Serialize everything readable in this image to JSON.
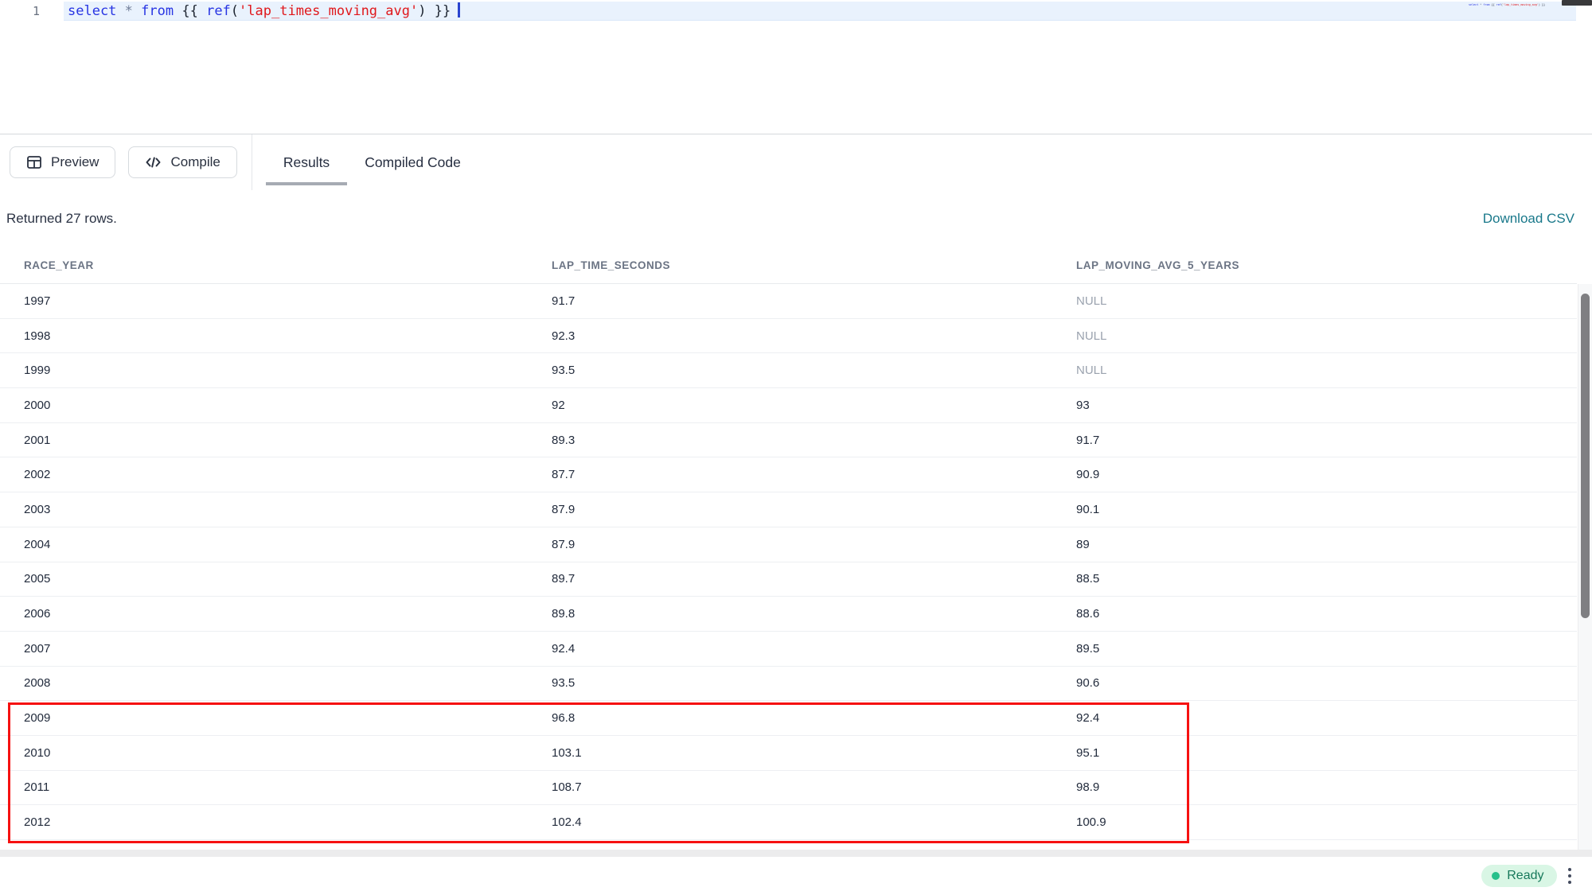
{
  "editor": {
    "line_number": "1",
    "code": "select * from {{ ref('lap_times_moving_avg') }}",
    "tokens": [
      {
        "t": "select",
        "c": "kw"
      },
      {
        "t": " ",
        "c": "pl"
      },
      {
        "t": "*",
        "c": "op"
      },
      {
        "t": " ",
        "c": "pl"
      },
      {
        "t": "from",
        "c": "kw"
      },
      {
        "t": " {{ ",
        "c": "pl"
      },
      {
        "t": "ref",
        "c": "kw"
      },
      {
        "t": "(",
        "c": "pl"
      },
      {
        "t": "'lap_times_moving_avg'",
        "c": "str"
      },
      {
        "t": ")",
        "c": "pl"
      },
      {
        "t": " }}",
        "c": "pl"
      }
    ]
  },
  "toolbar": {
    "preview_label": "Preview",
    "compile_label": "Compile",
    "tabs": [
      {
        "label": "Results",
        "active": true
      },
      {
        "label": "Compiled Code",
        "active": false
      }
    ]
  },
  "results_bar": {
    "summary": "Returned 27 rows.",
    "download_csv_label": "Download CSV"
  },
  "table": {
    "columns": [
      "RACE_YEAR",
      "LAP_TIME_SECONDS",
      "LAP_MOVING_AVG_5_YEARS"
    ],
    "null_display": "NULL",
    "rows": [
      {
        "race_year": "1997",
        "lap_time_seconds": "91.7",
        "lap_moving_avg_5_years": "NULL"
      },
      {
        "race_year": "1998",
        "lap_time_seconds": "92.3",
        "lap_moving_avg_5_years": "NULL"
      },
      {
        "race_year": "1999",
        "lap_time_seconds": "93.5",
        "lap_moving_avg_5_years": "NULL"
      },
      {
        "race_year": "2000",
        "lap_time_seconds": "92",
        "lap_moving_avg_5_years": "93"
      },
      {
        "race_year": "2001",
        "lap_time_seconds": "89.3",
        "lap_moving_avg_5_years": "91.7"
      },
      {
        "race_year": "2002",
        "lap_time_seconds": "87.7",
        "lap_moving_avg_5_years": "90.9"
      },
      {
        "race_year": "2003",
        "lap_time_seconds": "87.9",
        "lap_moving_avg_5_years": "90.1"
      },
      {
        "race_year": "2004",
        "lap_time_seconds": "87.9",
        "lap_moving_avg_5_years": "89"
      },
      {
        "race_year": "2005",
        "lap_time_seconds": "89.7",
        "lap_moving_avg_5_years": "88.5"
      },
      {
        "race_year": "2006",
        "lap_time_seconds": "89.8",
        "lap_moving_avg_5_years": "88.6"
      },
      {
        "race_year": "2007",
        "lap_time_seconds": "92.4",
        "lap_moving_avg_5_years": "89.5"
      },
      {
        "race_year": "2008",
        "lap_time_seconds": "93.5",
        "lap_moving_avg_5_years": "90.6"
      },
      {
        "race_year": "2009",
        "lap_time_seconds": "96.8",
        "lap_moving_avg_5_years": "92.4"
      },
      {
        "race_year": "2010",
        "lap_time_seconds": "103.1",
        "lap_moving_avg_5_years": "95.1"
      },
      {
        "race_year": "2011",
        "lap_time_seconds": "108.7",
        "lap_moving_avg_5_years": "98.9"
      },
      {
        "race_year": "2012",
        "lap_time_seconds": "102.4",
        "lap_moving_avg_5_years": "100.9"
      }
    ],
    "highlighted_years": [
      "2009",
      "2010",
      "2011",
      "2012"
    ]
  },
  "status_bar": {
    "ready_label": "Ready"
  },
  "colors": {
    "keyword": "#2734e3",
    "string": "#e0181c",
    "operator": "#707d97",
    "punctuation": "#1c2430",
    "highlight_box": "#f61111",
    "download_link": "#19788a",
    "ready_text": "#17795b",
    "ready_bg": "#d9f6e5",
    "ready_dot": "#27c08b",
    "tab_underline": "#a6abb3"
  }
}
